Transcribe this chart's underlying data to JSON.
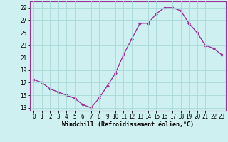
{
  "x": [
    0,
    1,
    2,
    3,
    4,
    5,
    6,
    7,
    8,
    9,
    10,
    11,
    12,
    13,
    14,
    15,
    16,
    17,
    18,
    19,
    20,
    21,
    22,
    23
  ],
  "y": [
    17.5,
    17.0,
    16.0,
    15.5,
    15.0,
    14.5,
    13.5,
    13.0,
    14.5,
    16.5,
    18.5,
    21.5,
    24.0,
    26.5,
    26.5,
    28.0,
    29.0,
    29.0,
    28.5,
    26.5,
    25.0,
    23.0,
    22.5,
    21.5
  ],
  "line_color": "#993399",
  "marker": "D",
  "marker_size": 2.0,
  "bg_color": "#cff0f0",
  "grid_color": "#a8d8d8",
  "xlabel": "Windchill (Refroidissement éolien,°C)",
  "xlabel_fontsize": 6.0,
  "ylabel_ticks": [
    13,
    15,
    17,
    19,
    21,
    23,
    25,
    27,
    29
  ],
  "xticks": [
    0,
    1,
    2,
    3,
    4,
    5,
    6,
    7,
    8,
    9,
    10,
    11,
    12,
    13,
    14,
    15,
    16,
    17,
    18,
    19,
    20,
    21,
    22,
    23
  ],
  "xlim": [
    -0.5,
    23.5
  ],
  "ylim": [
    12.5,
    30.0
  ],
  "tick_fontsize": 5.5,
  "line_width": 1.0,
  "spine_color": "#993399",
  "xlabel_bold": true
}
